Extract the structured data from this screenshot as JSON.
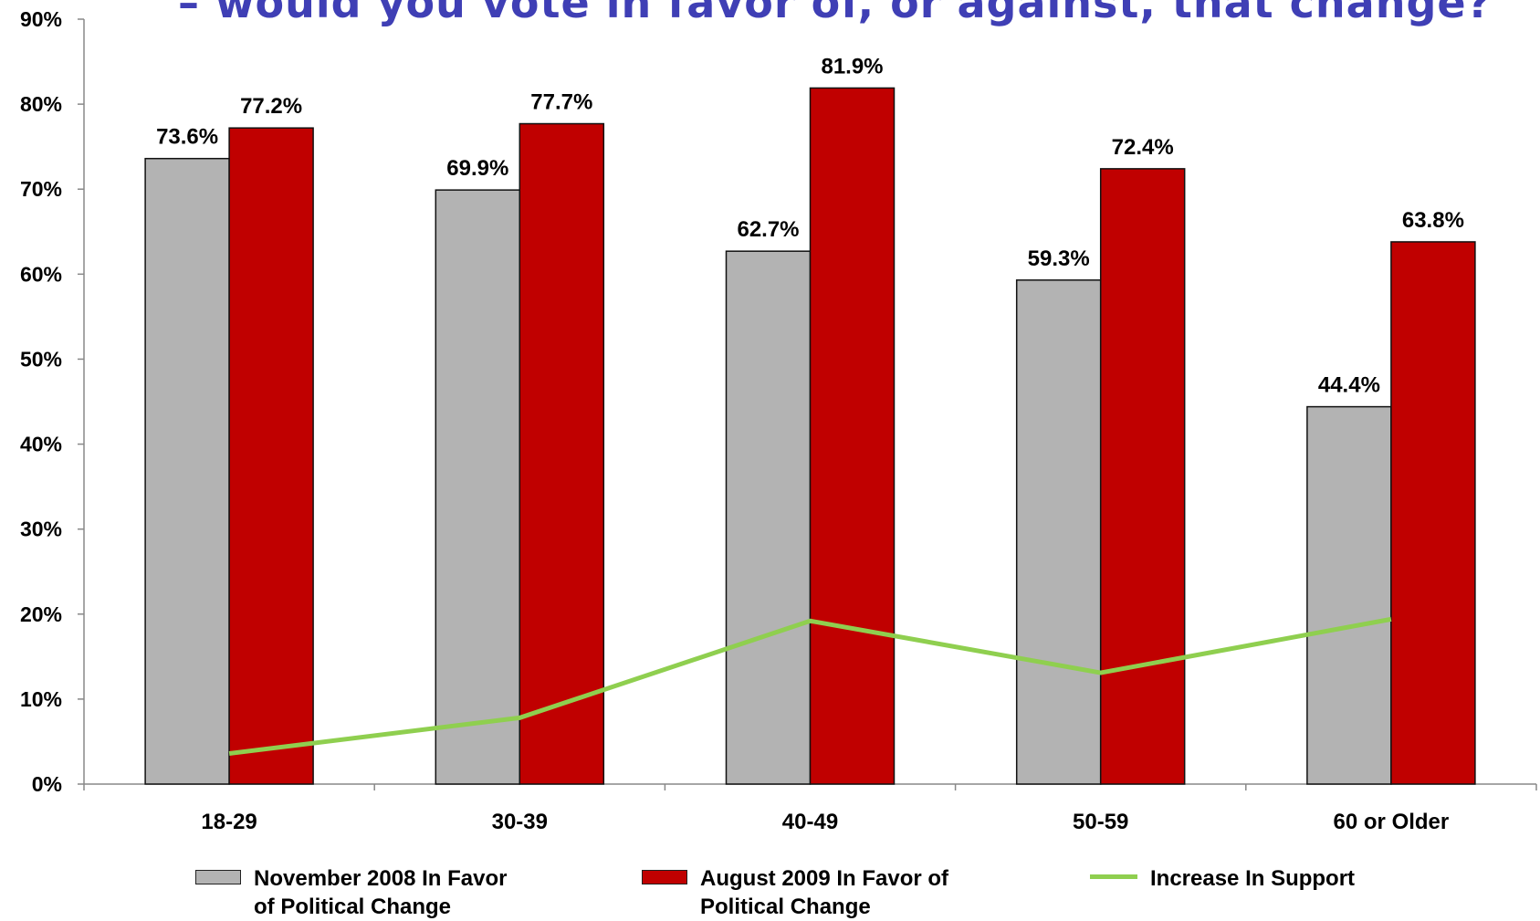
{
  "title": "– would you vote in favor of, or against, that change?",
  "chart_data": {
    "type": "bar",
    "categories": [
      "18-29",
      "30-39",
      "40-49",
      "50-59",
      "60 or Older"
    ],
    "series": [
      {
        "name": "November 2008 In Favor of Political Change",
        "type": "bar",
        "color": "#b3b3b3",
        "values": [
          73.6,
          69.9,
          62.7,
          59.3,
          44.4
        ],
        "labels": [
          "73.6%",
          "69.9%",
          "62.7%",
          "59.3%",
          "44.4%"
        ]
      },
      {
        "name": "August 2009 In Favor of Political Change",
        "type": "bar",
        "color": "#c00000",
        "values": [
          77.2,
          77.7,
          81.9,
          72.4,
          63.8
        ],
        "labels": [
          "77.2%",
          "77.7%",
          "81.9%",
          "72.4%",
          "63.8%"
        ]
      },
      {
        "name": "Increase In Support",
        "type": "line",
        "color": "#8fcf4f",
        "values": [
          3.6,
          7.8,
          19.2,
          13.1,
          19.4
        ]
      }
    ],
    "ylim": [
      0,
      90
    ],
    "yticks": [
      "0%",
      "10%",
      "20%",
      "30%",
      "40%",
      "50%",
      "60%",
      "70%",
      "80%",
      "90%"
    ],
    "legend_position": "bottom"
  },
  "legend": {
    "nov_line1": "November 2008 In Favor",
    "nov_line2": "of Political Change",
    "aug_line1": "August 2009 In Favor of",
    "aug_line2": "Political Change",
    "increase": "Increase In Support"
  }
}
